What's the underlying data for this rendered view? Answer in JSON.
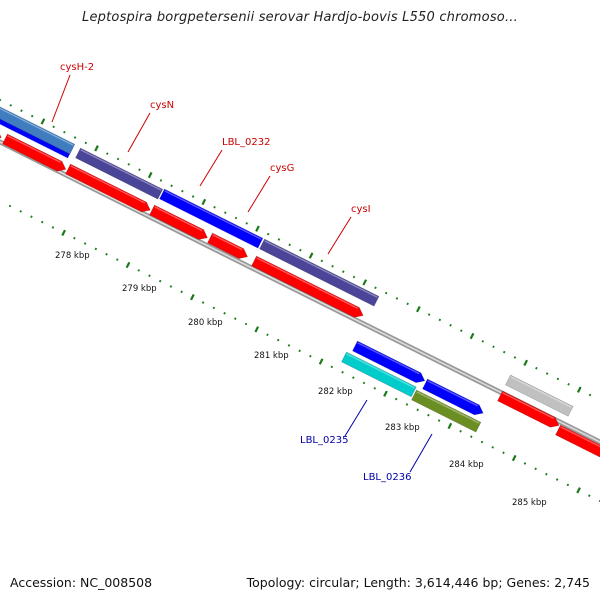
{
  "title": "Leptospira borgpetersenii serovar Hardjo-bovis L550 chromoso...",
  "footer": {
    "accession": "Accession: NC_008508",
    "summary": "Topology: circular; Length: 3,614,446 bp; Genes: 2,745"
  },
  "colors": {
    "forward_gene": "#0000ff",
    "reverse_gene": "#ff0000",
    "forward_gene_alt": "#4b4599",
    "highlight_gene": "#00cccc",
    "olive_gene": "#6b8e23",
    "gray_gene": "#c0c0c0",
    "tick": "#1a7a1a",
    "backbone": "#888888",
    "label_red": "#cc0000",
    "label_blue": "#0000aa"
  },
  "kbp_labels": [
    "278 kbp",
    "279 kbp",
    "280 kbp",
    "281 kbp",
    "282 kbp",
    "283 kbp",
    "284 kbp",
    "285 kbp"
  ],
  "gene_labels": [
    {
      "text": "cysH-2",
      "strand": "forward"
    },
    {
      "text": "cysN",
      "strand": "forward"
    },
    {
      "text": "LBL_0232",
      "strand": "forward"
    },
    {
      "text": "cysG",
      "strand": "forward"
    },
    {
      "text": "cysI",
      "strand": "forward"
    },
    {
      "text": "LBL_0235",
      "strand": "reverse"
    },
    {
      "text": "LBL_0236",
      "strand": "reverse"
    }
  ]
}
